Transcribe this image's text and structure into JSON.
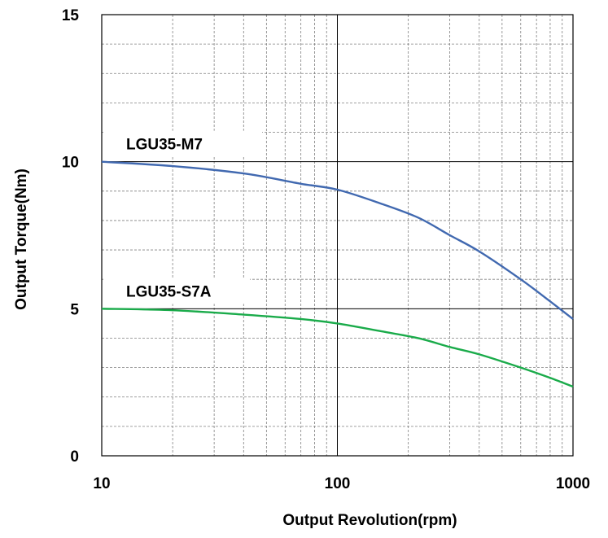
{
  "chart_data": {
    "type": "line",
    "xlabel": "Output Revolution(rpm)",
    "ylabel": "Output Torque(Nm)",
    "xscale": "log",
    "xlim": [
      10,
      1000
    ],
    "ylim": [
      0,
      15
    ],
    "x_ticks": [
      "10",
      "100",
      "1000"
    ],
    "y_ticks": [
      "0",
      "5",
      "10",
      "15"
    ],
    "grid": true,
    "series": [
      {
        "name": "LGU35-M7",
        "color": "#4169b0",
        "x": [
          10,
          20,
          40,
          70,
          100,
          150,
          220,
          300,
          400,
          600,
          800,
          1000
        ],
        "y": [
          10.0,
          9.85,
          9.6,
          9.25,
          9.05,
          8.6,
          8.1,
          7.5,
          6.95,
          6.0,
          5.25,
          4.65
        ]
      },
      {
        "name": "LGU35-S7A",
        "color": "#1aab4a",
        "x": [
          10,
          20,
          40,
          70,
          100,
          150,
          220,
          300,
          400,
          600,
          800,
          1000
        ],
        "y": [
          5.0,
          4.95,
          4.8,
          4.65,
          4.5,
          4.25,
          4.0,
          3.7,
          3.45,
          3.0,
          2.65,
          2.35
        ]
      }
    ]
  }
}
